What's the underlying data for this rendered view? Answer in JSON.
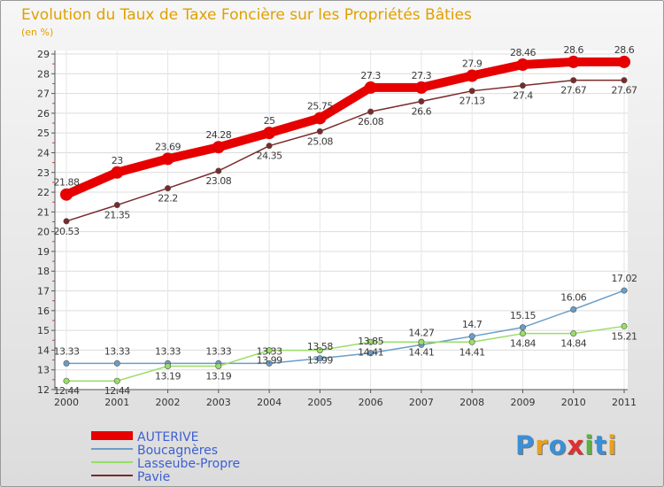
{
  "chart_data": {
    "type": "line",
    "title": "Evolution du Taux de Taxe Foncière sur les Propriétés Bâties",
    "subtitle": "(en %)",
    "xlabel": "",
    "ylabel": "",
    "x": [
      "2000",
      "2001",
      "2002",
      "2003",
      "2004",
      "2005",
      "2006",
      "2007",
      "2008",
      "2009",
      "2010",
      "2011"
    ],
    "ylim": [
      12,
      29
    ],
    "yticks": [
      "12",
      "13",
      "14",
      "15",
      "16",
      "17",
      "18",
      "19",
      "20",
      "21",
      "22",
      "23",
      "24",
      "25",
      "26",
      "27",
      "28",
      "29"
    ],
    "grid": true,
    "legend_position": "bottom-left",
    "series": [
      {
        "name": "AUTERIVE",
        "color": "#e60000",
        "values": [
          21.88,
          23,
          23.69,
          24.28,
          25,
          25.75,
          27.3,
          27.3,
          27.9,
          28.46,
          28.6,
          28.6
        ],
        "labels": [
          "21.88",
          "23",
          "23.69",
          "24.28",
          "25",
          "25.75",
          "27.3",
          "27.3",
          "27.9",
          "28.46",
          "28.6",
          "28.6"
        ]
      },
      {
        "name": "Boucagnères",
        "color": "#6a9ec8",
        "values": [
          13.33,
          13.33,
          13.33,
          13.33,
          13.33,
          13.58,
          13.85,
          14.27,
          14.7,
          15.15,
          16.06,
          17.02
        ],
        "labels": [
          "13.33",
          "13.33",
          "13.33",
          "13.33",
          "13.33",
          "13.58",
          "13.85",
          "14.27",
          "14.7",
          "15.15",
          "16.06",
          "17.02"
        ]
      },
      {
        "name": "Lasseube-Propre",
        "color": "#99dd66",
        "values": [
          12.44,
          12.44,
          13.19,
          13.19,
          13.99,
          13.99,
          14.41,
          14.41,
          14.41,
          14.84,
          14.84,
          15.21
        ],
        "labels": [
          "12.44",
          "12.44",
          "13.19",
          "13.19",
          "13.99",
          "13.99",
          "14.41",
          "14.41",
          "14.41",
          "14.84",
          "14.84",
          "15.21"
        ]
      },
      {
        "name": "Pavie",
        "color": "#7a2a2a",
        "values": [
          20.53,
          21.35,
          22.2,
          23.08,
          24.35,
          25.08,
          26.08,
          26.6,
          27.13,
          27.4,
          27.67,
          27.67
        ],
        "labels": [
          "20.53",
          "21.35",
          "22.2",
          "23.08",
          "24.35",
          "25.08",
          "26.08",
          "26.6",
          "27.13",
          "27.4",
          "27.67",
          "27.67"
        ]
      }
    ]
  },
  "branding": {
    "logo_letters": [
      "P",
      "r",
      "o",
      "x",
      "i",
      "t",
      "i"
    ],
    "logo_colors": [
      "#3b8fd6",
      "#e8a020",
      "#3b8fd6",
      "#e03030",
      "#60b040",
      "#3b8fd6",
      "#e8a020"
    ]
  }
}
